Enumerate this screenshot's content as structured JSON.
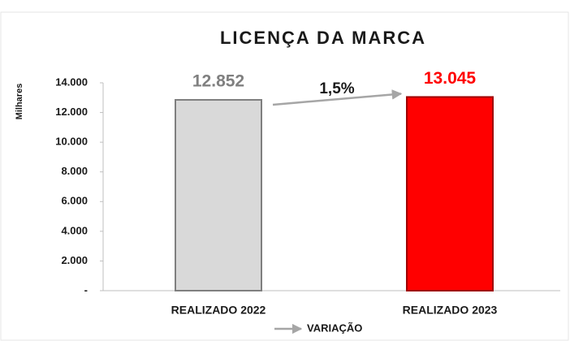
{
  "chart_data": {
    "type": "bar",
    "title": "LICENÇA DA MARCA",
    "y_label": "Milhares",
    "categories": [
      "REALIZADO 2022",
      "REALIZADO 2023"
    ],
    "values": [
      12852,
      13045
    ],
    "value_labels": [
      "12.852",
      "13.045"
    ],
    "colors": [
      "#d9d9d9",
      "#ff0000"
    ],
    "value_label_colors": [
      "#808080",
      "#ff0000"
    ],
    "ylim": [
      0,
      14000
    ],
    "yticks": [
      {
        "value": 0,
        "label": "-"
      },
      {
        "value": 2000,
        "label": "2.000"
      },
      {
        "value": 4000,
        "label": "4.000"
      },
      {
        "value": 6000,
        "label": "6.000"
      },
      {
        "value": 8000,
        "label": "8.000"
      },
      {
        "value": 10000,
        "label": "10.000"
      },
      {
        "value": 12000,
        "label": "12.000"
      },
      {
        "value": 14000,
        "label": "14.000"
      }
    ],
    "variation": {
      "name": "VARIAÇÃO",
      "label": "1,5%",
      "color": "#a6a6a6"
    }
  }
}
